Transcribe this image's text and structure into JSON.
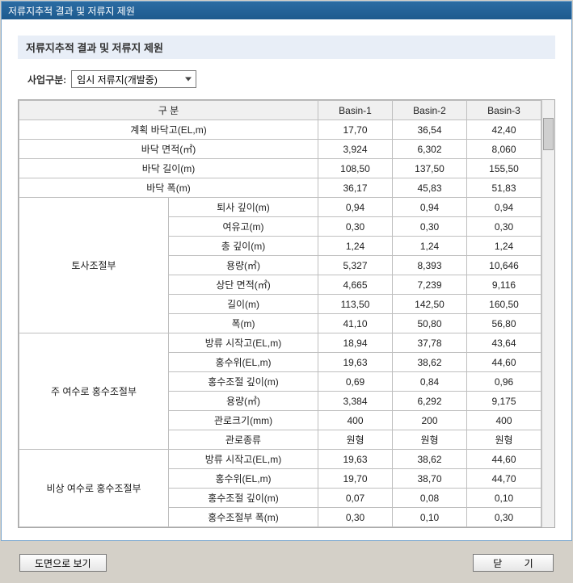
{
  "window": {
    "title": "저류지추적 결과 및 저류지 제원"
  },
  "section": {
    "title": "저류지추적 결과 및 저류지 제원"
  },
  "filter": {
    "label": "사업구분:",
    "value": "임시 저류지(개발중)"
  },
  "buttons": {
    "drawing": "도면으로 보기",
    "close": "닫 기"
  },
  "table": {
    "headers": {
      "group": "구 분",
      "b1": "Basin-1",
      "b2": "Basin-2",
      "b3": "Basin-3"
    },
    "simpleRows": [
      {
        "label": "계획 바닥고(EL,m)",
        "b1": "17,70",
        "b2": "36,54",
        "b3": "42,40"
      },
      {
        "label": "바닥 면적(㎡)",
        "b1": "3,924",
        "b2": "6,302",
        "b3": "8,060"
      },
      {
        "label": "바닥 길이(m)",
        "b1": "108,50",
        "b2": "137,50",
        "b3": "155,50"
      },
      {
        "label": "바닥 폭(m)",
        "b1": "36,17",
        "b2": "45,83",
        "b3": "51,83"
      }
    ],
    "groups": [
      {
        "title": "토사조절부",
        "rows": [
          {
            "label": "퇴사 깊이(m)",
            "b1": "0,94",
            "b2": "0,94",
            "b3": "0,94"
          },
          {
            "label": "여유고(m)",
            "b1": "0,30",
            "b2": "0,30",
            "b3": "0,30"
          },
          {
            "label": "총 깊이(m)",
            "b1": "1,24",
            "b2": "1,24",
            "b3": "1,24"
          },
          {
            "label": "용량(㎥)",
            "b1": "5,327",
            "b2": "8,393",
            "b3": "10,646"
          },
          {
            "label": "상단 면적(㎡)",
            "b1": "4,665",
            "b2": "7,239",
            "b3": "9,116"
          },
          {
            "label": "길이(m)",
            "b1": "113,50",
            "b2": "142,50",
            "b3": "160,50"
          },
          {
            "label": "폭(m)",
            "b1": "41,10",
            "b2": "50,80",
            "b3": "56,80"
          }
        ]
      },
      {
        "title": "주 여수로 홍수조절부",
        "rows": [
          {
            "label": "방류 시작고(EL,m)",
            "b1": "18,94",
            "b2": "37,78",
            "b3": "43,64"
          },
          {
            "label": "홍수위(EL,m)",
            "b1": "19,63",
            "b2": "38,62",
            "b3": "44,60"
          },
          {
            "label": "홍수조절 깊이(m)",
            "b1": "0,69",
            "b2": "0,84",
            "b3": "0,96"
          },
          {
            "label": "용량(㎥)",
            "b1": "3,384",
            "b2": "6,292",
            "b3": "9,175"
          },
          {
            "label": "관로크기(mm)",
            "b1": "400",
            "b2": "200",
            "b3": "400"
          },
          {
            "label": "관로종류",
            "b1": "원형",
            "b2": "원형",
            "b3": "원형"
          }
        ]
      },
      {
        "title": "비상 여수로 홍수조절부",
        "rows": [
          {
            "label": "방류 시작고(EL,m)",
            "b1": "19,63",
            "b2": "38,62",
            "b3": "44,60"
          },
          {
            "label": "홍수위(EL,m)",
            "b1": "19,70",
            "b2": "38,70",
            "b3": "44,70"
          },
          {
            "label": "홍수조절 깊이(m)",
            "b1": "0,07",
            "b2": "0,08",
            "b3": "0,10"
          },
          {
            "label": "홍수조절부 폭(m)",
            "b1": "0,30",
            "b2": "0,10",
            "b3": "0,30"
          }
        ]
      }
    ]
  }
}
